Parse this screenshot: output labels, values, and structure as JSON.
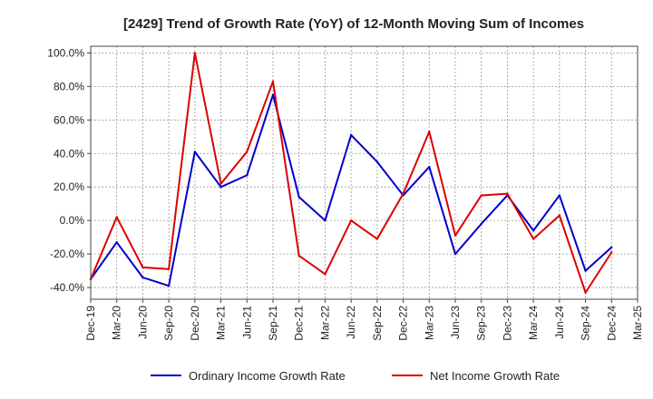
{
  "chart_data": {
    "type": "line",
    "title": "[2429]  Trend of Growth Rate (YoY) of 12-Month Moving Sum of Incomes",
    "xlabel": "",
    "ylabel": "",
    "x_ticks": [
      "Dec-19",
      "Mar-20",
      "Jun-20",
      "Sep-20",
      "Dec-20",
      "Mar-21",
      "Jun-21",
      "Sep-21",
      "Dec-21",
      "Mar-22",
      "Jun-22",
      "Sep-22",
      "Dec-22",
      "Mar-23",
      "Jun-23",
      "Sep-23",
      "Dec-23",
      "Mar-24",
      "Jun-24",
      "Sep-24",
      "Dec-24",
      "Mar-25"
    ],
    "y_ticks": [
      "100.0%",
      "80.0%",
      "60.0%",
      "40.0%",
      "20.0%",
      "0.0%",
      "-20.0%",
      "-40.0%"
    ],
    "y_tick_values": [
      100,
      80,
      60,
      40,
      20,
      0,
      -20,
      -40
    ],
    "ylim": [
      -47,
      104
    ],
    "grid": true,
    "legend_position": "bottom",
    "x": [
      "Dec-19",
      "Mar-20",
      "Jun-20",
      "Sep-20",
      "Dec-20",
      "Mar-21",
      "Jun-21",
      "Sep-21",
      "Dec-21",
      "Mar-22",
      "Jun-22",
      "Sep-22",
      "Dec-22",
      "Mar-23",
      "Jun-23",
      "Sep-23",
      "Dec-23",
      "Mar-24",
      "Jun-24",
      "Sep-24",
      "Dec-24"
    ],
    "series": [
      {
        "name": "Ordinary Income Growth Rate",
        "color": "#0000cc",
        "values": [
          -35,
          -13,
          -34,
          -39,
          41,
          20,
          27,
          75,
          14,
          0,
          51,
          35,
          15,
          32,
          -20,
          -2,
          15,
          -6,
          15,
          -30,
          -16
        ]
      },
      {
        "name": "Net Income Growth Rate",
        "color": "#dd0000",
        "values": [
          -35,
          2,
          -28,
          -29,
          100,
          22,
          41,
          83,
          -21,
          -32,
          0,
          -11,
          16,
          53,
          -9,
          15,
          16,
          -11,
          3,
          -43,
          -19
        ]
      }
    ]
  }
}
